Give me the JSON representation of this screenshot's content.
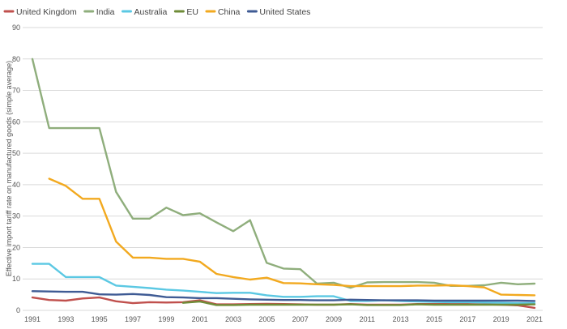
{
  "chart_data": {
    "type": "line",
    "title": "",
    "xlabel": "",
    "ylabel": "Effective import tariff rate on manufactured goods (simple average)",
    "xlim": [
      1991,
      2021
    ],
    "ylim": [
      0,
      90
    ],
    "x_ticks": [
      "1991",
      "1993",
      "1995",
      "1997",
      "1999",
      "2001",
      "2003",
      "2005",
      "2007",
      "2009",
      "2011",
      "2013",
      "2015",
      "2017",
      "2019",
      "2021"
    ],
    "y_ticks": [
      "0",
      "10",
      "20",
      "30",
      "40",
      "50",
      "60",
      "70",
      "80",
      "90"
    ],
    "grid": true,
    "legend_position": "top-left",
    "x": [
      1991,
      1992,
      1993,
      1994,
      1995,
      1996,
      1997,
      1998,
      1999,
      2000,
      2001,
      2002,
      2003,
      2004,
      2005,
      2006,
      2007,
      2008,
      2009,
      2010,
      2011,
      2012,
      2013,
      2014,
      2015,
      2016,
      2017,
      2018,
      2019,
      2020,
      2021
    ],
    "series": [
      {
        "name": "United Kingdom",
        "color": "#c0504d",
        "values": [
          4.1,
          3.3,
          3.1,
          3.8,
          4.1,
          2.9,
          2.3,
          2.6,
          2.5,
          2.6,
          3.2,
          1.9,
          1.9,
          2.0,
          2.1,
          2.0,
          1.9,
          1.8,
          1.8,
          2.0,
          1.8,
          1.8,
          1.8,
          2.0,
          2.0,
          2.0,
          2.0,
          1.9,
          1.8,
          1.6,
          0.8
        ]
      },
      {
        "name": "India",
        "color": "#8fae7c",
        "values": [
          80,
          58,
          58,
          58,
          58,
          37.7,
          29.2,
          29.2,
          32.7,
          30.3,
          30.9,
          28.0,
          25.2,
          28.7,
          15.1,
          13.3,
          13.1,
          8.5,
          8.8,
          7.2,
          8.9,
          9.0,
          9.0,
          9.0,
          8.8,
          7.8,
          7.8,
          8.0,
          8.8,
          8.3,
          8.5
        ]
      },
      {
        "name": "Australia",
        "color": "#5bc8e3",
        "values": [
          14.8,
          14.8,
          10.6,
          10.6,
          10.6,
          7.9,
          7.5,
          7.1,
          6.6,
          6.3,
          5.9,
          5.5,
          5.6,
          5.6,
          4.8,
          4.3,
          4.3,
          4.5,
          4.5,
          3.0,
          3.0,
          3.2,
          3.0,
          2.8,
          2.7,
          2.6,
          2.6,
          2.5,
          2.4,
          2.3,
          2.3
        ]
      },
      {
        "name": "EU",
        "color": "#6f8c38",
        "values": [
          null,
          null,
          null,
          null,
          null,
          null,
          null,
          null,
          null,
          2.4,
          2.8,
          1.7,
          1.7,
          1.8,
          1.8,
          1.8,
          1.8,
          1.8,
          1.8,
          1.9,
          1.7,
          1.7,
          1.7,
          1.9,
          1.8,
          1.8,
          1.8,
          1.8,
          1.8,
          1.8,
          1.9
        ]
      },
      {
        "name": "China",
        "color": "#f2a91f",
        "values": [
          null,
          41.9,
          39.6,
          35.5,
          35.5,
          21.9,
          16.8,
          16.8,
          16.4,
          16.4,
          15.5,
          11.6,
          10.6,
          9.8,
          10.4,
          8.7,
          8.6,
          8.3,
          8.1,
          7.7,
          7.7,
          7.7,
          7.7,
          7.9,
          7.9,
          8.0,
          7.7,
          7.3,
          5.0,
          4.9,
          4.8
        ]
      },
      {
        "name": "United States",
        "color": "#3f5b94",
        "values": [
          6.1,
          6.0,
          5.9,
          5.9,
          5.1,
          5.0,
          5.2,
          4.9,
          4.2,
          4.1,
          3.9,
          3.9,
          3.7,
          3.5,
          3.4,
          3.3,
          3.3,
          3.2,
          3.2,
          3.4,
          3.3,
          3.2,
          3.2,
          3.2,
          3.1,
          3.1,
          3.1,
          3.1,
          3.1,
          3.1,
          3.0
        ]
      }
    ]
  }
}
